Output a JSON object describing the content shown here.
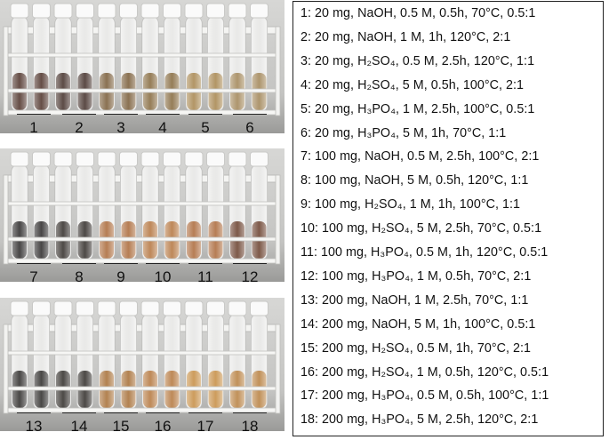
{
  "panels": [
    {
      "labels": [
        "1",
        "2",
        "3",
        "4",
        "5",
        "6"
      ],
      "tube_colors": [
        "#3a1a10",
        "#2e1710",
        "#6b4a20",
        "#7a5a28",
        "#a07a3a",
        "#9a7a45"
      ]
    },
    {
      "labels": [
        "7",
        "8",
        "9",
        "10",
        "11",
        "12"
      ],
      "tube_colors": [
        "#121010",
        "#1a1410",
        "#a55a22",
        "#b0682a",
        "#a65a24",
        "#5a2a14"
      ]
    },
    {
      "labels": [
        "13",
        "14",
        "15",
        "16",
        "17",
        "18"
      ],
      "tube_colors": [
        "#141210",
        "#181410",
        "#a0601e",
        "#b06a28",
        "#c4832e",
        "#b4742a"
      ]
    }
  ],
  "legend": [
    {
      "id": "1",
      "content": "20 mg, NaOH, 0.5 M, 0.5h, 70°C, 0.5:1"
    },
    {
      "id": "2",
      "content": "20 mg, NaOH, 1 M, 1h, 120°C, 2:1"
    },
    {
      "id": "3",
      "content": "20 mg, H₂SO₄, 0.5 M, 2.5h, 120°C, 1:1"
    },
    {
      "id": "4",
      "content": "20 mg, H₂SO₄, 5 M, 0.5h, 100°C, 2:1"
    },
    {
      "id": "5",
      "content": "20 mg, H₃PO₄, 1 M, 2.5h, 100°C, 0.5:1"
    },
    {
      "id": "6",
      "content": "20 mg, H₃PO₄, 5 M, 1h, 70°C, 1:1"
    },
    {
      "id": "7",
      "content": "100 mg, NaOH, 0.5 M, 2.5h, 100°C, 2:1"
    },
    {
      "id": "8",
      "content": "100 mg, NaOH, 5 M, 0.5h, 120°C, 1:1"
    },
    {
      "id": "9",
      "content": "100 mg, H₂SO₄, 1 M, 1h, 100°C, 1:1"
    },
    {
      "id": "10",
      "content": "100 mg, H₂SO₄, 5 M, 2.5h, 70°C, 0.5:1"
    },
    {
      "id": "11",
      "content": "100 mg, H₃PO₄, 0.5 M, 1h, 120°C, 0.5:1"
    },
    {
      "id": "12",
      "content": "100 mg, H₃PO₄, 1 M, 0.5h, 70°C, 2:1"
    },
    {
      "id": "13",
      "content": "200 mg, NaOH, 1 M, 2.5h, 70°C, 1:1"
    },
    {
      "id": "14",
      "content": "200 mg, NaOH, 5 M, 1h, 100°C, 0.5:1"
    },
    {
      "id": "15",
      "content": "200 mg, H₂SO₄, 0.5 M, 1h, 70°C, 2:1"
    },
    {
      "id": "16",
      "content": "200 mg, H₂SO₄, 1 M, 0.5h, 120°C, 0.5:1"
    },
    {
      "id": "17",
      "content": "200 mg, H₃PO₄, 0.5 M, 0.5h, 100°C, 1:1"
    },
    {
      "id": "18",
      "content": "200 mg, H₃PO₄, 5 M, 2.5h, 120°C, 2:1"
    }
  ]
}
